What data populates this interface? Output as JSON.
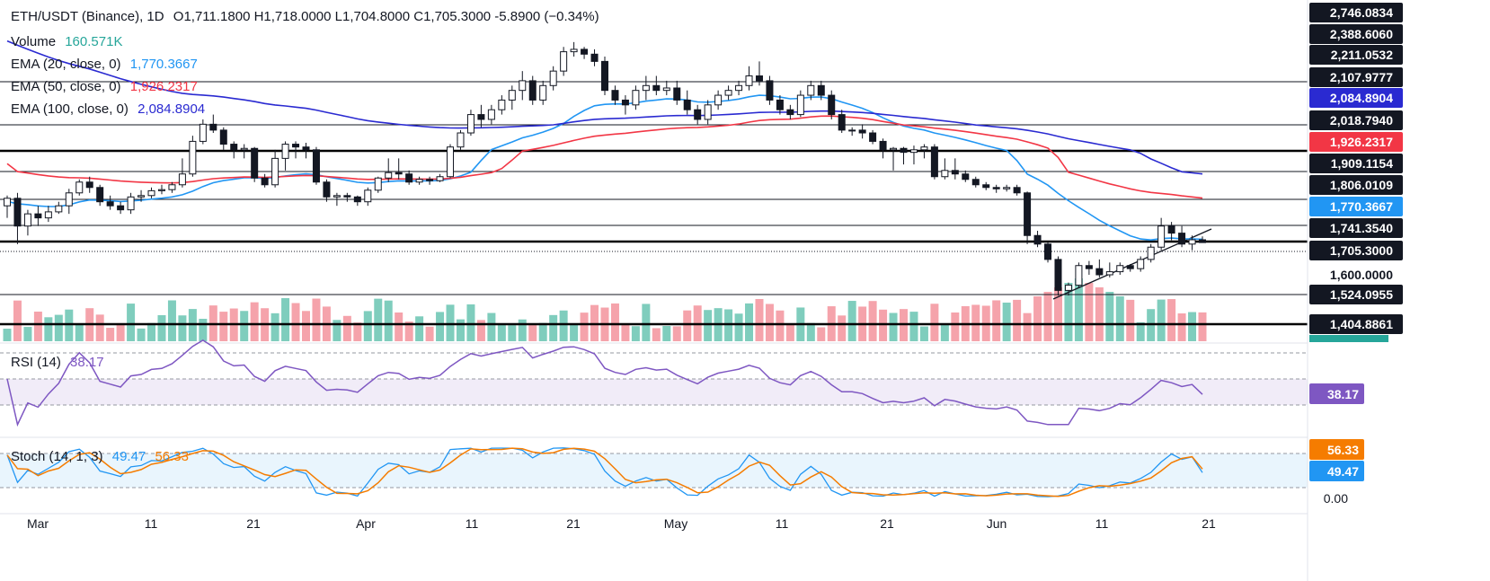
{
  "header": {
    "symbol": "ETH/USDT (Binance), 1D",
    "ohlc": "O1,711.1800  H1,718.0000  L1,704.8000  C1,705.3000  -5.8900 (−0.34%)"
  },
  "legend": {
    "volume": {
      "label": "Volume",
      "value": "160.571K"
    },
    "ema20": {
      "label": "EMA (20, close, 0)",
      "value": "1,770.3667"
    },
    "ema50": {
      "label": "EMA (50, close, 0)",
      "value": "1,926.2317"
    },
    "ema100": {
      "label": "EMA (100, close, 0)",
      "value": "2,084.8904"
    }
  },
  "colors": {
    "up": "#26a69a",
    "down": "#131722",
    "up_fill": "#ffffff",
    "vol_up": "#7fcdbd",
    "vol_down": "#f5a3ab",
    "ema20": "#2196f3",
    "ema50": "#f23645",
    "ema100": "#2a2ad1",
    "rsi": "#7e57c2",
    "stoch_k": "#2196f3",
    "stoch_d": "#f57c00"
  },
  "indicators": {
    "rsi": {
      "label": "RSI (14)",
      "value": "38.17"
    },
    "stoch": {
      "label": "Stoch (14, 1, 3)",
      "k": "49.47",
      "d": "56.33"
    }
  },
  "price_axis": {
    "labels": [
      "2,746.0834",
      "2,388.6060",
      "2,211.0532",
      "2,107.9777",
      "2,084.8904",
      "2,018.7940",
      "1,926.2317",
      "1,909.1154",
      "1,806.0109",
      "1,770.3667",
      "1,741.3540",
      "1,705.3000",
      "1,600.0000",
      "1,524.0955",
      "1,404.8861"
    ],
    "tag_ema100": "2,084.8904",
    "tag_ema50": "1,926.2317",
    "tag_ema20": "1,770.3667",
    "tag_last": "1,705.3000",
    "rsi_tag": "38.17",
    "stoch_d_tag": "56.33",
    "stoch_k_tag": "49.47",
    "stoch_zero": "0.00"
  },
  "time_axis": [
    "Mar",
    "11",
    "21",
    "Apr",
    "11",
    "21",
    "May",
    "11",
    "21",
    "Jun",
    "11",
    "21"
  ],
  "chart_data": {
    "type": "candlestick",
    "symbol": "ETH/USDT",
    "interval": "1D",
    "horizontal_levels": [
      2746.0834,
      2388.606,
      2211.0532,
      2107.9777,
      2018.794,
      1909.1154,
      1806.0109,
      1741.354,
      1524.0955,
      1404.8861
    ],
    "last_close": 1705.3,
    "ema": {
      "ema20": 1770.3667,
      "ema50": 1926.2317,
      "ema100": 2084.8904
    },
    "candles": [
      [
        1790,
        1820,
        1760,
        1810
      ],
      [
        1810,
        1830,
        1700,
        1740
      ],
      [
        1740,
        1780,
        1720,
        1770
      ],
      [
        1770,
        1790,
        1740,
        1760
      ],
      [
        1760,
        1790,
        1750,
        1775
      ],
      [
        1775,
        1800,
        1770,
        1790
      ],
      [
        1790,
        1845,
        1770,
        1830
      ],
      [
        1830,
        1880,
        1820,
        1870
      ],
      [
        1870,
        1890,
        1830,
        1850
      ],
      [
        1850,
        1860,
        1790,
        1800
      ],
      [
        1800,
        1820,
        1780,
        1790
      ],
      [
        1790,
        1800,
        1770,
        1780
      ],
      [
        1780,
        1830,
        1770,
        1815
      ],
      [
        1815,
        1840,
        1800,
        1820
      ],
      [
        1820,
        1850,
        1810,
        1838
      ],
      [
        1838,
        1860,
        1825,
        1842
      ],
      [
        1842,
        1870,
        1830,
        1860
      ],
      [
        1860,
        1920,
        1850,
        1900
      ],
      [
        1900,
        1980,
        1890,
        1960
      ],
      [
        1960,
        2030,
        1950,
        2020
      ],
      [
        2020,
        2040,
        1990,
        2000
      ],
      [
        2000,
        2010,
        1930,
        1950
      ],
      [
        1950,
        1960,
        1920,
        1930
      ],
      [
        1930,
        1950,
        1920,
        1935
      ],
      [
        1935,
        1940,
        1870,
        1885
      ],
      [
        1885,
        1900,
        1850,
        1860
      ],
      [
        1860,
        1930,
        1850,
        1920
      ],
      [
        1920,
        1960,
        1910,
        1950
      ],
      [
        1950,
        1960,
        1920,
        1940
      ],
      [
        1940,
        1955,
        1920,
        1930
      ],
      [
        1930,
        1940,
        1860,
        1870
      ],
      [
        1870,
        1880,
        1800,
        1815
      ],
      [
        1815,
        1830,
        1790,
        1820
      ],
      [
        1820,
        1830,
        1800,
        1815
      ],
      [
        1815,
        1820,
        1790,
        1800
      ],
      [
        1800,
        1850,
        1790,
        1840
      ],
      [
        1840,
        1890,
        1830,
        1885
      ],
      [
        1885,
        1920,
        1870,
        1905
      ],
      [
        1905,
        1920,
        1880,
        1900
      ],
      [
        1900,
        1910,
        1860,
        1870
      ],
      [
        1870,
        1890,
        1860,
        1880
      ],
      [
        1880,
        1890,
        1860,
        1875
      ],
      [
        1875,
        1900,
        1870,
        1890
      ],
      [
        1890,
        1950,
        1885,
        1940
      ],
      [
        1940,
        2000,
        1930,
        1990
      ],
      [
        1990,
        2050,
        1980,
        2040
      ],
      [
        2040,
        2060,
        2010,
        2030
      ],
      [
        2030,
        2060,
        2020,
        2050
      ],
      [
        2050,
        2080,
        2040,
        2070
      ],
      [
        2070,
        2100,
        2050,
        2090
      ],
      [
        2090,
        2130,
        2070,
        2110
      ],
      [
        2110,
        2120,
        2060,
        2070
      ],
      [
        2070,
        2110,
        2060,
        2100
      ],
      [
        2100,
        2140,
        2090,
        2130
      ],
      [
        2130,
        2180,
        2120,
        2170
      ],
      [
        2170,
        2190,
        2160,
        2175
      ],
      [
        2175,
        2180,
        2155,
        2165
      ],
      [
        2165,
        2175,
        2140,
        2150
      ],
      [
        2150,
        2160,
        2080,
        2090
      ],
      [
        2090,
        2100,
        2060,
        2070
      ],
      [
        2070,
        2080,
        2040,
        2060
      ],
      [
        2060,
        2100,
        2050,
        2090
      ],
      [
        2090,
        2120,
        2070,
        2100
      ],
      [
        2100,
        2120,
        2080,
        2090
      ],
      [
        2090,
        2110,
        2080,
        2095
      ],
      [
        2095,
        2110,
        2060,
        2070
      ],
      [
        2070,
        2090,
        2040,
        2050
      ],
      [
        2050,
        2060,
        2020,
        2030
      ],
      [
        2030,
        2070,
        2020,
        2060
      ],
      [
        2060,
        2090,
        2050,
        2080
      ],
      [
        2080,
        2100,
        2070,
        2090
      ],
      [
        2090,
        2110,
        2080,
        2100
      ],
      [
        2100,
        2140,
        2090,
        2120
      ],
      [
        2120,
        2150,
        2100,
        2110
      ],
      [
        2110,
        2120,
        2060,
        2070
      ],
      [
        2070,
        2080,
        2040,
        2050
      ],
      [
        2050,
        2060,
        2030,
        2040
      ],
      [
        2040,
        2090,
        2035,
        2080
      ],
      [
        2080,
        2110,
        2070,
        2100
      ],
      [
        2100,
        2110,
        2070,
        2080
      ],
      [
        2080,
        2090,
        2030,
        2040
      ],
      [
        2040,
        2050,
        1990,
        2000
      ],
      [
        2000,
        2010,
        1980,
        2000
      ],
      [
        2000,
        2020,
        1970,
        1990
      ],
      [
        1990,
        2000,
        1950,
        1960
      ],
      [
        1960,
        1970,
        1920,
        1930
      ],
      [
        1930,
        1940,
        1910,
        1935
      ],
      [
        1935,
        1940,
        1915,
        1925
      ],
      [
        1925,
        1945,
        1915,
        1930
      ],
      [
        1930,
        1950,
        1920,
        1940
      ],
      [
        1940,
        1950,
        1880,
        1890
      ],
      [
        1890,
        1920,
        1880,
        1910
      ],
      [
        1910,
        1920,
        1880,
        1900
      ],
      [
        1900,
        1910,
        1870,
        1880
      ],
      [
        1880,
        1890,
        1850,
        1860
      ],
      [
        1860,
        1870,
        1840,
        1850
      ],
      [
        1850,
        1860,
        1830,
        1845
      ],
      [
        1845,
        1860,
        1835,
        1850
      ],
      [
        1850,
        1860,
        1820,
        1830
      ],
      [
        1830,
        1835,
        1700,
        1720
      ],
      [
        1720,
        1730,
        1690,
        1700
      ],
      [
        1700,
        1705,
        1640,
        1650
      ],
      [
        1650,
        1660,
        1520,
        1540
      ],
      [
        1540,
        1570,
        1520,
        1560
      ],
      [
        1560,
        1640,
        1550,
        1630
      ],
      [
        1630,
        1645,
        1600,
        1620
      ],
      [
        1620,
        1650,
        1590,
        1600
      ],
      [
        1600,
        1640,
        1590,
        1610
      ],
      [
        1610,
        1640,
        1600,
        1630
      ],
      [
        1630,
        1635,
        1610,
        1620
      ],
      [
        1620,
        1660,
        1610,
        1650
      ],
      [
        1650,
        1700,
        1640,
        1690
      ],
      [
        1690,
        1760,
        1680,
        1740
      ],
      [
        1740,
        1750,
        1710,
        1725
      ],
      [
        1725,
        1740,
        1690,
        1700
      ],
      [
        1700,
        1720,
        1680,
        1711
      ],
      [
        1711,
        1718,
        1705,
        1705
      ]
    ],
    "rsi_value": 38.17,
    "stoch": {
      "k": 49.47,
      "d": 56.33
    }
  }
}
